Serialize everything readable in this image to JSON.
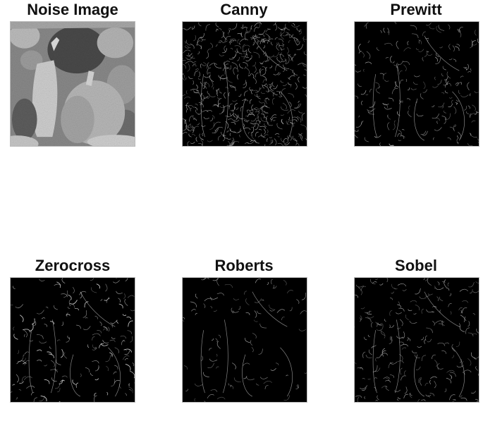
{
  "figure": {
    "panels": [
      {
        "id": "noise",
        "title": "Noise Image",
        "kind": "grayscale-photo",
        "subject": "peppers"
      },
      {
        "id": "canny",
        "title": "Canny",
        "kind": "edge-map",
        "density": "high"
      },
      {
        "id": "prewitt",
        "title": "Prewitt",
        "kind": "edge-map",
        "density": "sparse"
      },
      {
        "id": "zerocross",
        "title": "Zerocross",
        "kind": "edge-map",
        "density": "medium"
      },
      {
        "id": "roberts",
        "title": "Roberts",
        "kind": "edge-map",
        "density": "very-sparse"
      },
      {
        "id": "sobel",
        "title": "Sobel",
        "kind": "edge-map",
        "density": "sparse"
      }
    ],
    "colors": {
      "background": "#ffffff",
      "edge_background": "#000000",
      "edge_pixels": "#bfbfbf"
    }
  }
}
